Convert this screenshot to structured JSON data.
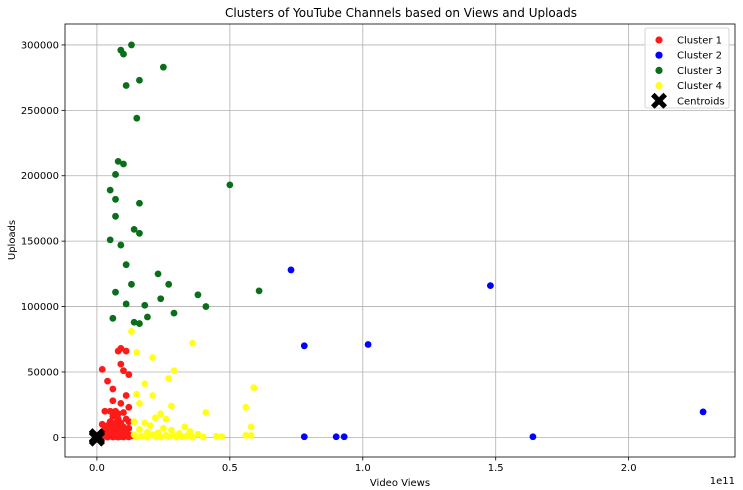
{
  "chart_data": {
    "type": "scatter",
    "title": "Clusters of YouTube Channels based on Views and Uploads",
    "xlabel": "Video Views",
    "ylabel": "Uploads",
    "x_offset_text": "1e11",
    "xlim": [
      -0.12,
      2.4
    ],
    "ylim": [
      -15000,
      316000
    ],
    "x_ticks": [
      0.0,
      0.5,
      1.0,
      1.5,
      2.0
    ],
    "x_tick_labels": [
      "0.0",
      "0.5",
      "1.0",
      "1.5",
      "2.0"
    ],
    "y_ticks": [
      0,
      50000,
      100000,
      150000,
      200000,
      250000,
      300000
    ],
    "y_tick_labels": [
      "0",
      "50000",
      "100000",
      "150000",
      "200000",
      "250000",
      "300000"
    ],
    "grid": true,
    "legend_position": "top-right",
    "series": [
      {
        "name": "Cluster 1",
        "color": "#ff1a1a",
        "points": [
          [
            0.02,
            52000
          ],
          [
            0.09,
            68000
          ],
          [
            0.08,
            66000
          ],
          [
            0.11,
            66000
          ],
          [
            0.09,
            56000
          ],
          [
            0.1,
            51000
          ],
          [
            0.12,
            48000
          ],
          [
            0.04,
            43000
          ],
          [
            0.06,
            37000
          ],
          [
            0.11,
            32000
          ],
          [
            0.06,
            28000
          ],
          [
            0.09,
            26000
          ],
          [
            0.12,
            23000
          ],
          [
            0.03,
            20000
          ],
          [
            0.05,
            20000
          ],
          [
            0.07,
            20000
          ],
          [
            0.08,
            18000
          ],
          [
            0.1,
            19000
          ],
          [
            0.06,
            16000
          ],
          [
            0.08,
            14000
          ],
          [
            0.11,
            14000
          ],
          [
            0.05,
            12000
          ],
          [
            0.07,
            11000
          ],
          [
            0.09,
            11000
          ],
          [
            0.12,
            12000
          ],
          [
            0.02,
            10000
          ],
          [
            0.04,
            9000
          ],
          [
            0.06,
            8000
          ],
          [
            0.08,
            7000
          ],
          [
            0.1,
            8000
          ],
          [
            0.12,
            7000
          ],
          [
            0.03,
            6000
          ],
          [
            0.05,
            5000
          ],
          [
            0.07,
            5000
          ],
          [
            0.09,
            4000
          ],
          [
            0.11,
            5000
          ],
          [
            0.02,
            3000
          ],
          [
            0.04,
            3000
          ],
          [
            0.06,
            2500
          ],
          [
            0.08,
            2000
          ],
          [
            0.1,
            2500
          ],
          [
            0.12,
            2000
          ],
          [
            0.01,
            1000
          ],
          [
            0.03,
            800
          ],
          [
            0.05,
            900
          ],
          [
            0.07,
            700
          ],
          [
            0.09,
            600
          ],
          [
            0.11,
            800
          ],
          [
            0.13,
            1200
          ],
          [
            0.02,
            300
          ],
          [
            0.04,
            200
          ],
          [
            0.06,
            300
          ],
          [
            0.08,
            200
          ],
          [
            0.1,
            300
          ],
          [
            0.12,
            400
          ]
        ]
      },
      {
        "name": "Cluster 2",
        "color": "#0000ff",
        "points": [
          [
            0.73,
            128000
          ],
          [
            1.48,
            116000
          ],
          [
            0.78,
            70000
          ],
          [
            1.02,
            71000
          ],
          [
            2.28,
            19500
          ],
          [
            0.78,
            500
          ],
          [
            0.9,
            500
          ],
          [
            0.93,
            500
          ],
          [
            1.64,
            500
          ]
        ]
      },
      {
        "name": "Cluster 3",
        "color": "#0b6e1a",
        "points": [
          [
            0.13,
            300000
          ],
          [
            0.09,
            296000
          ],
          [
            0.1,
            293000
          ],
          [
            0.25,
            283000
          ],
          [
            0.16,
            273000
          ],
          [
            0.11,
            269000
          ],
          [
            0.15,
            244000
          ],
          [
            0.08,
            211000
          ],
          [
            0.1,
            209000
          ],
          [
            0.07,
            201000
          ],
          [
            0.5,
            193000
          ],
          [
            0.05,
            189000
          ],
          [
            0.07,
            182000
          ],
          [
            0.16,
            179000
          ],
          [
            0.07,
            169000
          ],
          [
            0.14,
            159000
          ],
          [
            0.16,
            156000
          ],
          [
            0.05,
            151000
          ],
          [
            0.09,
            147000
          ],
          [
            0.11,
            132000
          ],
          [
            0.23,
            125000
          ],
          [
            0.13,
            117000
          ],
          [
            0.27,
            117000
          ],
          [
            0.07,
            111000
          ],
          [
            0.61,
            112000
          ],
          [
            0.38,
            109000
          ],
          [
            0.24,
            106000
          ],
          [
            0.11,
            102000
          ],
          [
            0.18,
            101000
          ],
          [
            0.41,
            100000
          ],
          [
            0.29,
            95000
          ],
          [
            0.19,
            92000
          ],
          [
            0.06,
            91000
          ],
          [
            0.14,
            88000
          ],
          [
            0.16,
            87000
          ]
        ]
      },
      {
        "name": "Cluster 4",
        "color": "#ffff1a",
        "points": [
          [
            0.13,
            81000
          ],
          [
            0.36,
            72000
          ],
          [
            0.15,
            65000
          ],
          [
            0.21,
            61000
          ],
          [
            0.29,
            51000
          ],
          [
            0.27,
            45000
          ],
          [
            0.18,
            41000
          ],
          [
            0.59,
            38000
          ],
          [
            0.15,
            33000
          ],
          [
            0.21,
            32000
          ],
          [
            0.16,
            26000
          ],
          [
            0.28,
            24000
          ],
          [
            0.56,
            23000
          ],
          [
            0.41,
            19000
          ],
          [
            0.24,
            18000
          ],
          [
            0.22,
            15000
          ],
          [
            0.26,
            14000
          ],
          [
            0.14,
            12000
          ],
          [
            0.18,
            11000
          ],
          [
            0.2,
            9000
          ],
          [
            0.33,
            8000
          ],
          [
            0.58,
            8000
          ],
          [
            0.25,
            7000
          ],
          [
            0.16,
            6000
          ],
          [
            0.28,
            5500
          ],
          [
            0.35,
            4500
          ],
          [
            0.19,
            4000
          ],
          [
            0.23,
            3500
          ],
          [
            0.31,
            3000
          ],
          [
            0.38,
            2500
          ],
          [
            0.14,
            2000
          ],
          [
            0.21,
            2000
          ],
          [
            0.26,
            1500
          ],
          [
            0.29,
            1500
          ],
          [
            0.34,
            1200
          ],
          [
            0.56,
            1500
          ],
          [
            0.58,
            1500
          ],
          [
            0.45,
            800
          ],
          [
            0.47,
            600
          ],
          [
            0.17,
            800
          ],
          [
            0.22,
            700
          ],
          [
            0.27,
            600
          ],
          [
            0.32,
            500
          ],
          [
            0.15,
            300
          ],
          [
            0.19,
            200
          ],
          [
            0.24,
            200
          ],
          [
            0.3,
            300
          ],
          [
            0.36,
            200
          ],
          [
            0.4,
            300
          ]
        ]
      },
      {
        "name": "Centroids",
        "color": "#000000",
        "marker": "X",
        "points": [
          [
            0.0,
            1000
          ],
          [
            0.0,
            -1000
          ],
          [
            0.0,
            0
          ]
        ]
      }
    ]
  }
}
